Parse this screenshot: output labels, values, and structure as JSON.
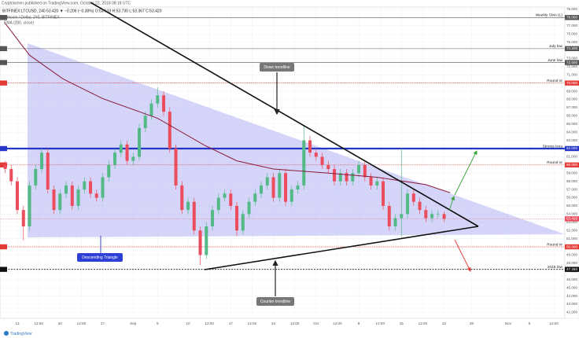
{
  "header": {
    "published": "Cryptoismen published on TradingView.com, October 22, 2018 08:18 UTC",
    "quote": "BITFINEX:LTCUSD, 240  53.420 ▼ −0.206 (−0.38%)  O:53.633  H:53.730  L:53.367  C:53.420"
  },
  "footer": "TradingView",
  "chart_data": {
    "type": "candlestick",
    "title": "Litecoin / Dollar, 240, BITFINEX",
    "colors": {
      "up": "#53b987",
      "down": "#eb4d5c"
    },
    "x": [
      -2,
      -1,
      0,
      1,
      2,
      3,
      4,
      5,
      6,
      7,
      8,
      9,
      10,
      11,
      12,
      13,
      14,
      15,
      16,
      17,
      18,
      19,
      20,
      21,
      22,
      23,
      24,
      25,
      26,
      27,
      28,
      29,
      30,
      31,
      32,
      33,
      34,
      35,
      36,
      37,
      38,
      39,
      40,
      41,
      42,
      43,
      44,
      45,
      46,
      47,
      48,
      49,
      50,
      51,
      52,
      53,
      54,
      55,
      56,
      57,
      58,
      59,
      60,
      61,
      62,
      63,
      64,
      65,
      66,
      67,
      68,
      69,
      70
    ],
    "open": [
      60.0,
      59.5,
      58.0,
      54.5,
      52.5,
      57.5,
      59.5,
      61.5,
      57.0,
      54.5,
      56.5,
      57.5,
      55.0,
      57.0,
      58.0,
      56.5,
      56.0,
      58.5,
      60.0,
      61.5,
      62.5,
      60.5,
      61.0,
      64.5,
      66.0,
      67.5,
      68.5,
      66.5,
      62.0,
      57.5,
      54.5,
      55.5,
      52.0,
      49.0,
      52.5,
      54.5,
      56.0,
      56.5,
      55.0,
      52.0,
      54.0,
      55.5,
      56.5,
      57.5,
      58.5,
      56.0,
      59.0,
      55.5,
      57.0,
      57.5,
      63.0,
      61.5,
      61.0,
      60.0,
      59.5,
      58.0,
      59.0,
      58.0,
      59.0,
      60.0,
      58.5,
      57.5,
      58.0,
      55.0,
      52.5,
      53.5,
      54.0,
      56.5,
      55.5,
      54.5,
      53.5,
      54.0,
      54.0
    ],
    "high": [
      60.5,
      60.0,
      58.5,
      55.0,
      58.0,
      60.0,
      62.0,
      62.0,
      57.5,
      57.0,
      58.0,
      58.0,
      57.5,
      58.5,
      58.5,
      57.0,
      59.0,
      60.5,
      62.0,
      63.0,
      63.0,
      61.5,
      65.0,
      66.5,
      68.0,
      69.5,
      69.0,
      67.0,
      62.5,
      58.0,
      56.0,
      56.0,
      52.5,
      53.0,
      55.0,
      56.5,
      57.0,
      57.0,
      55.5,
      54.5,
      56.0,
      57.0,
      58.0,
      59.0,
      59.0,
      59.5,
      59.5,
      57.5,
      58.0,
      64.8,
      63.5,
      62.0,
      61.5,
      60.5,
      60.0,
      59.5,
      59.5,
      59.5,
      60.5,
      60.5,
      59.0,
      58.5,
      58.5,
      55.5,
      54.0,
      62.0,
      57.0,
      57.0,
      56.0,
      55.0,
      54.5,
      54.5,
      54.3
    ],
    "low": [
      59.0,
      57.5,
      54.0,
      50.8,
      52.0,
      57.0,
      59.0,
      56.5,
      54.0,
      54.0,
      56.0,
      54.5,
      54.5,
      56.5,
      56.0,
      55.5,
      55.5,
      58.0,
      59.5,
      61.0,
      60.0,
      60.0,
      60.5,
      64.0,
      65.5,
      67.0,
      66.0,
      61.5,
      57.0,
      54.0,
      54.0,
      51.5,
      47.8,
      48.5,
      52.0,
      54.0,
      55.5,
      54.5,
      51.3,
      51.5,
      53.5,
      55.0,
      56.0,
      57.0,
      55.5,
      55.5,
      55.0,
      55.0,
      56.5,
      57.0,
      61.0,
      60.5,
      59.5,
      59.0,
      57.5,
      57.5,
      57.5,
      57.5,
      58.5,
      58.0,
      57.0,
      57.0,
      54.5,
      52.0,
      52.0,
      51.2,
      53.5,
      55.0,
      54.0,
      53.0,
      53.0,
      53.5,
      53.0
    ],
    "close": [
      59.5,
      58.0,
      54.5,
      52.5,
      57.5,
      59.5,
      61.5,
      57.0,
      54.5,
      56.5,
      57.5,
      55.0,
      57.0,
      58.0,
      56.5,
      56.0,
      58.5,
      60.0,
      61.5,
      62.5,
      60.5,
      61.0,
      64.5,
      66.0,
      67.5,
      68.5,
      66.5,
      62.0,
      57.5,
      54.5,
      55.5,
      52.0,
      49.0,
      52.5,
      54.5,
      56.0,
      56.5,
      55.0,
      52.0,
      54.0,
      55.5,
      56.5,
      57.5,
      58.5,
      56.0,
      59.0,
      55.5,
      57.0,
      57.5,
      63.0,
      61.5,
      61.0,
      60.0,
      59.5,
      58.0,
      59.0,
      58.0,
      59.0,
      60.0,
      58.5,
      57.5,
      58.0,
      55.0,
      52.5,
      53.5,
      54.0,
      56.5,
      55.5,
      54.5,
      53.5,
      54.0,
      54.0,
      53.42
    ],
    "ema": {
      "name": "EMA (200, close)",
      "color": "#8b1a3a",
      "x": [
        -2,
        2,
        7.5,
        14,
        23,
        30.7,
        36,
        42,
        51,
        59,
        67,
        71
      ],
      "values": [
        77.3,
        73.4,
        70.5,
        68.1,
        65.7,
        62.4,
        60.5,
        59.5,
        59.0,
        58.5,
        57.6,
        56.6
      ]
    },
    "levels": [
      {
        "name": "Weekly SMA (L)",
        "value": 78.0,
        "label": "78.000",
        "color": "#555555",
        "style": "solid"
      },
      {
        "name": "July low",
        "value": 74.2,
        "label": "74.200",
        "color": "#555555",
        "style": "solid"
      },
      {
        "name": "June low",
        "value": 72.5,
        "label": "72.500",
        "color": "#555555",
        "style": "solid"
      },
      {
        "name": "Round nr",
        "value": 70.0,
        "label": "70.000",
        "color": "#e53935",
        "style": "dotted"
      },
      {
        "name": "Strong Area",
        "value": 62.0,
        "label": "62.000",
        "color": "#2435c8",
        "style": "thick"
      },
      {
        "name": "Round nr",
        "value": 60.0,
        "label": "60.000",
        "color": "#e53935",
        "style": "dotted"
      },
      {
        "name": "Round nr",
        "value": 50.0,
        "label": "50.000",
        "color": "#e53935",
        "style": "dotted"
      },
      {
        "name": "2018 low",
        "value": 47.25,
        "label": "47.250",
        "color": "#111111",
        "style": "dashed"
      }
    ],
    "price_label": {
      "value": 53.42,
      "label": "53.420"
    },
    "annotations": [
      "Down trendline",
      "Counter trendline",
      "Descending Triangle"
    ],
    "xlim": [
      -2.84,
      89.8
    ],
    "ylim": [
      41.27,
      79.85
    ],
    "xticks": [
      {
        "value": 0,
        "label": "13"
      },
      {
        "value": 3.5,
        "label": "12:00"
      },
      {
        "value": 7,
        "label": "20"
      },
      {
        "value": 10.5,
        "label": "12:00"
      },
      {
        "value": 14,
        "label": "27"
      },
      {
        "value": 19,
        "label": "Sep"
      },
      {
        "value": 23,
        "label": "5"
      },
      {
        "value": 28,
        "label": "10"
      },
      {
        "value": 31.5,
        "label": "12:00"
      },
      {
        "value": 35,
        "label": "17"
      },
      {
        "value": 38.5,
        "label": "12:00"
      },
      {
        "value": 42,
        "label": "24"
      },
      {
        "value": 45.5,
        "label": "12:00"
      },
      {
        "value": 49,
        "label": "Oct"
      },
      {
        "value": 52.5,
        "label": "12:00"
      },
      {
        "value": 56,
        "label": "8"
      },
      {
        "value": 59.5,
        "label": "12:00"
      },
      {
        "value": 63,
        "label": "15"
      },
      {
        "value": 66.5,
        "label": "12:00"
      },
      {
        "value": 70,
        "label": "22"
      },
      {
        "value": 74.5,
        "label": "29"
      },
      {
        "value": 80.5,
        "label": "Nov"
      },
      {
        "value": 84,
        "label": "5"
      },
      {
        "value": 88,
        "label": "12:00"
      }
    ],
    "yticks": [
      {
        "value": 42,
        "label": "42.000"
      },
      {
        "value": 43,
        "label": "43.000"
      },
      {
        "value": 44,
        "label": "44.000"
      },
      {
        "value": 45,
        "label": "45.000"
      },
      {
        "value": 46,
        "label": "46.000"
      },
      {
        "value": 47,
        "label": "47.000"
      },
      {
        "value": 48,
        "label": "48.000"
      },
      {
        "value": 49,
        "label": "49.000"
      },
      {
        "value": 50,
        "label": "50.000"
      },
      {
        "value": 51,
        "label": "51.000"
      },
      {
        "value": 52,
        "label": "52.000"
      },
      {
        "value": 53,
        "label": "53.000"
      },
      {
        "value": 54,
        "label": "54.000"
      },
      {
        "value": 55,
        "label": "55.000"
      },
      {
        "value": 56,
        "label": "56.000"
      },
      {
        "value": 57,
        "label": "57.000"
      },
      {
        "value": 58,
        "label": "58.000"
      },
      {
        "value": 59,
        "label": "59.000"
      },
      {
        "value": 60,
        "label": "60.000"
      },
      {
        "value": 61,
        "label": "61.000"
      },
      {
        "value": 62,
        "label": "62.000"
      },
      {
        "value": 63,
        "label": "63.000"
      },
      {
        "value": 64,
        "label": "64.000"
      },
      {
        "value": 65,
        "label": "65.000"
      },
      {
        "value": 66,
        "label": "66.000"
      },
      {
        "value": 67,
        "label": "67.000"
      },
      {
        "value": 68,
        "label": "68.000"
      },
      {
        "value": 69,
        "label": "69.000"
      },
      {
        "value": 70,
        "label": "70.000"
      },
      {
        "value": 71,
        "label": "71.000"
      },
      {
        "value": 72,
        "label": "72.000"
      },
      {
        "value": 73,
        "label": "73.000"
      },
      {
        "value": 74,
        "label": "74.000"
      },
      {
        "value": 75,
        "label": "75.000"
      },
      {
        "value": 76,
        "label": "76.000"
      },
      {
        "value": 77,
        "label": "77.000"
      },
      {
        "value": 78,
        "label": "78.000"
      },
      {
        "value": 79,
        "label": "79.000"
      }
    ],
    "grid": true
  }
}
